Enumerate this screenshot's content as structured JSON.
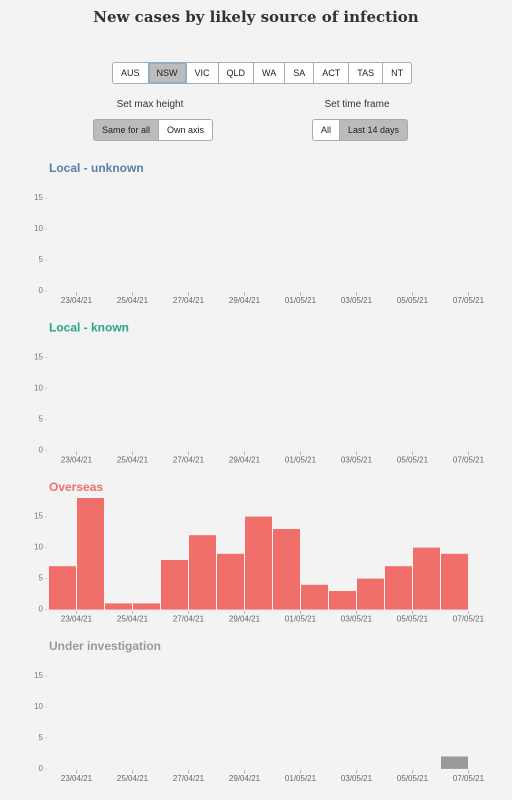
{
  "title": "New cases by likely source of infection",
  "states": {
    "options": [
      "AUS",
      "NSW",
      "VIC",
      "QLD",
      "WA",
      "SA",
      "ACT",
      "TAS",
      "NT"
    ],
    "selected": 1
  },
  "max_height": {
    "label": "Set max height",
    "options": [
      "Same for all",
      "Own axis"
    ],
    "selected": 0
  },
  "time_frame": {
    "label": "Set time frame",
    "options": [
      "All",
      "Last 14 days"
    ],
    "selected": 1
  },
  "chart_data": [
    {
      "type": "bar",
      "title": "Local - unknown",
      "color": "#5b7fa6",
      "xticks": [
        "23/04/21",
        "25/04/21",
        "27/04/21",
        "29/04/21",
        "01/05/21",
        "03/05/21",
        "05/05/21",
        "07/05/21"
      ],
      "values": [
        0,
        0,
        0,
        0,
        0,
        0,
        0,
        0,
        0,
        0,
        0,
        0,
        0,
        0,
        0
      ],
      "ylim": [
        0,
        20
      ],
      "yticks": [
        0,
        5,
        10,
        15
      ]
    },
    {
      "type": "bar",
      "title": "Local - known",
      "color": "#2aa587",
      "xticks": [
        "23/04/21",
        "25/04/21",
        "27/04/21",
        "29/04/21",
        "01/05/21",
        "03/05/21",
        "05/05/21",
        "07/05/21"
      ],
      "values": [
        0,
        0,
        0,
        0,
        0,
        0,
        0,
        0,
        0,
        0,
        0,
        0,
        0,
        0,
        0
      ],
      "ylim": [
        0,
        20
      ],
      "yticks": [
        0,
        5,
        10,
        15
      ]
    },
    {
      "type": "bar",
      "title": "Overseas",
      "color": "#f06f6b",
      "xticks": [
        "23/04/21",
        "25/04/21",
        "27/04/21",
        "29/04/21",
        "01/05/21",
        "03/05/21",
        "05/05/21",
        "07/05/21"
      ],
      "values": [
        7,
        18,
        1,
        1,
        8,
        12,
        9,
        15,
        13,
        4,
        3,
        5,
        7,
        10,
        9
      ],
      "ylim": [
        0,
        20
      ],
      "yticks": [
        0,
        5,
        10,
        15
      ]
    },
    {
      "type": "bar",
      "title": "Under investigation",
      "color": "#999999",
      "xticks": [
        "23/04/21",
        "25/04/21",
        "27/04/21",
        "29/04/21",
        "01/05/21",
        "03/05/21",
        "05/05/21",
        "07/05/21"
      ],
      "values": [
        0,
        0,
        0,
        0,
        0,
        0,
        0,
        0,
        0,
        0,
        0,
        0,
        0,
        0,
        2
      ],
      "ylim": [
        0,
        20
      ],
      "yticks": [
        0,
        5,
        10,
        15
      ]
    }
  ]
}
